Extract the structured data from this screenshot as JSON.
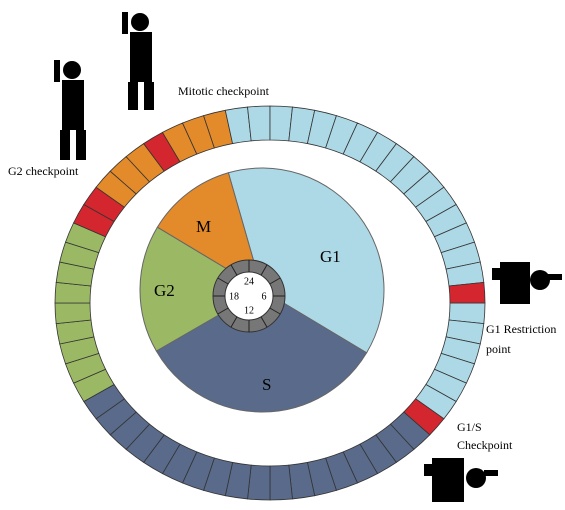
{
  "checkpoints": {
    "mitotic": "Mitotic checkpoint",
    "g2": "G2 checkpoint",
    "g1_restriction": [
      "G1 Restriction",
      "point"
    ],
    "g1_s": [
      "G1/S",
      "Checkpoint"
    ]
  },
  "phases": {
    "m": "M",
    "g1": "G1",
    "g2": "G2",
    "s": "S"
  },
  "clock": [
    "24",
    "6",
    "12",
    "18"
  ]
}
